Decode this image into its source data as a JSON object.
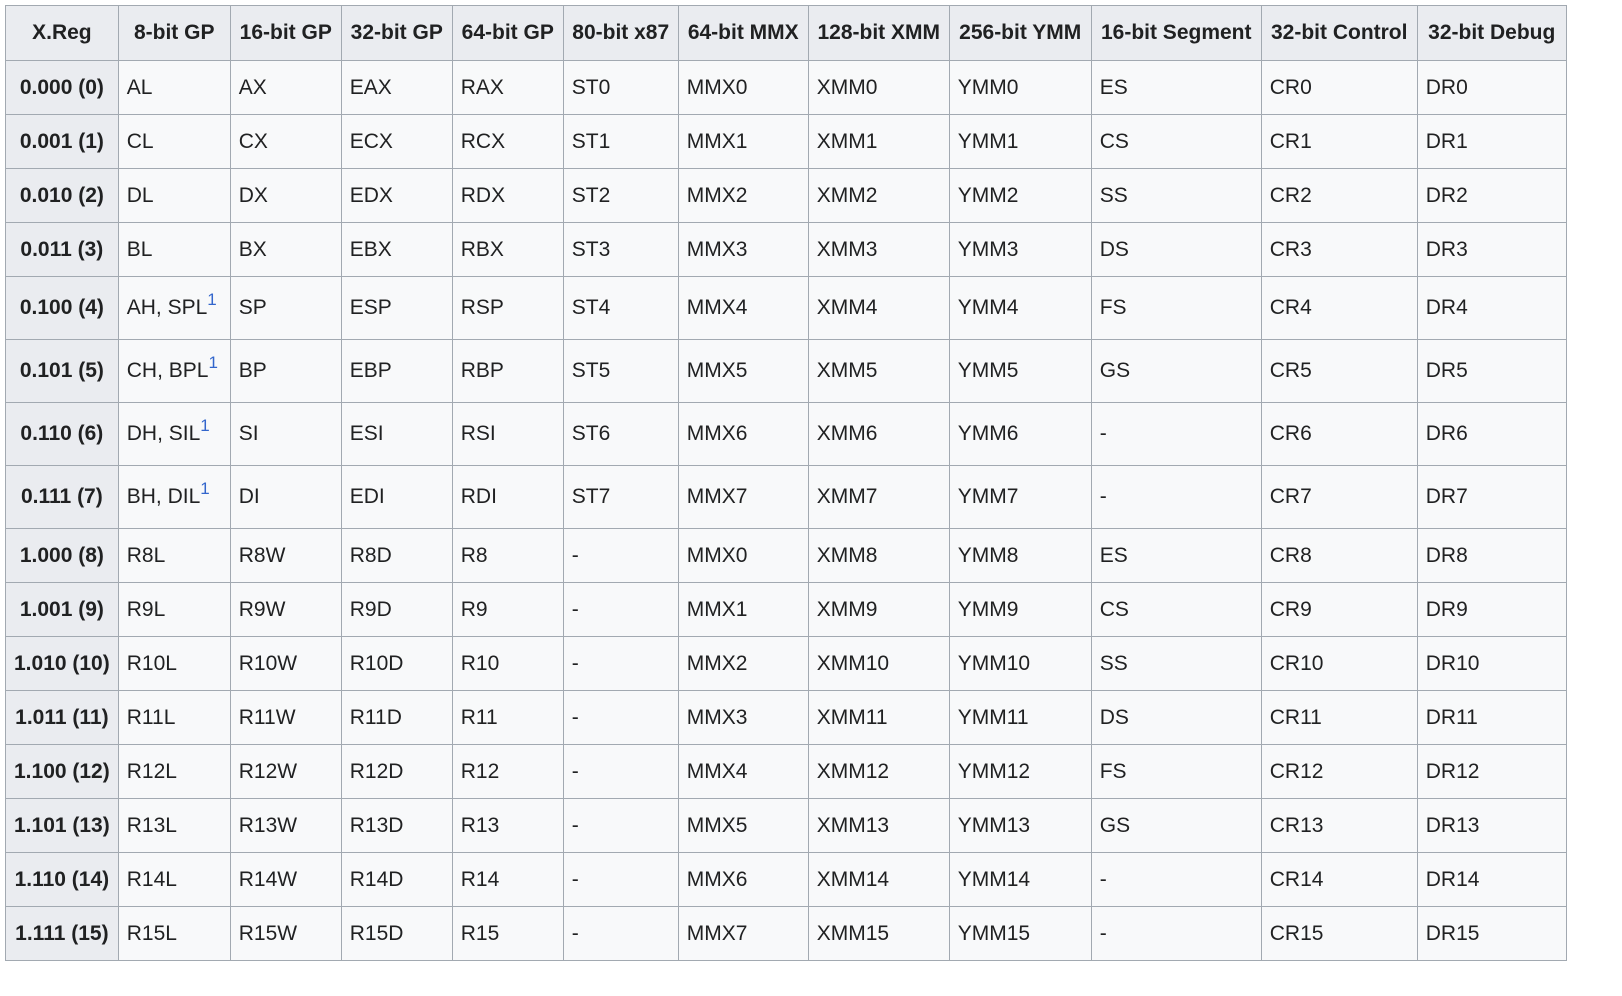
{
  "table": {
    "headers": [
      "X.Reg",
      "8-bit GP",
      "16-bit GP",
      "32-bit GP",
      "64-bit GP",
      "80-bit x87",
      "64-bit MMX",
      "128-bit XMM",
      "256-bit YMM",
      "16-bit Segment",
      "32-bit Control",
      "32-bit Debug"
    ],
    "rows": [
      {
        "xreg": "0.000 (0)",
        "gp8": "AL",
        "fn": "",
        "gp16": "AX",
        "gp32": "EAX",
        "gp64": "RAX",
        "x87": "ST0",
        "mmx": "MMX0",
        "xmm": "XMM0",
        "ymm": "YMM0",
        "seg": "ES",
        "ctrl": "CR0",
        "dbg": "DR0"
      },
      {
        "xreg": "0.001 (1)",
        "gp8": "CL",
        "fn": "",
        "gp16": "CX",
        "gp32": "ECX",
        "gp64": "RCX",
        "x87": "ST1",
        "mmx": "MMX1",
        "xmm": "XMM1",
        "ymm": "YMM1",
        "seg": "CS",
        "ctrl": "CR1",
        "dbg": "DR1"
      },
      {
        "xreg": "0.010 (2)",
        "gp8": "DL",
        "fn": "",
        "gp16": "DX",
        "gp32": "EDX",
        "gp64": "RDX",
        "x87": "ST2",
        "mmx": "MMX2",
        "xmm": "XMM2",
        "ymm": "YMM2",
        "seg": "SS",
        "ctrl": "CR2",
        "dbg": "DR2"
      },
      {
        "xreg": "0.011 (3)",
        "gp8": "BL",
        "fn": "",
        "gp16": "BX",
        "gp32": "EBX",
        "gp64": "RBX",
        "x87": "ST3",
        "mmx": "MMX3",
        "xmm": "XMM3",
        "ymm": "YMM3",
        "seg": "DS",
        "ctrl": "CR3",
        "dbg": "DR3"
      },
      {
        "xreg": "0.100 (4)",
        "gp8": "AH, SPL",
        "fn": "1",
        "gp16": "SP",
        "gp32": "ESP",
        "gp64": "RSP",
        "x87": "ST4",
        "mmx": "MMX4",
        "xmm": "XMM4",
        "ymm": "YMM4",
        "seg": "FS",
        "ctrl": "CR4",
        "dbg": "DR4"
      },
      {
        "xreg": "0.101 (5)",
        "gp8": "CH, BPL",
        "fn": "1",
        "gp16": "BP",
        "gp32": "EBP",
        "gp64": "RBP",
        "x87": "ST5",
        "mmx": "MMX5",
        "xmm": "XMM5",
        "ymm": "YMM5",
        "seg": "GS",
        "ctrl": "CR5",
        "dbg": "DR5"
      },
      {
        "xreg": "0.110 (6)",
        "gp8": "DH, SIL",
        "fn": "1",
        "gp16": "SI",
        "gp32": "ESI",
        "gp64": "RSI",
        "x87": "ST6",
        "mmx": "MMX6",
        "xmm": "XMM6",
        "ymm": "YMM6",
        "seg": "-",
        "ctrl": "CR6",
        "dbg": "DR6"
      },
      {
        "xreg": "0.111 (7)",
        "gp8": "BH, DIL",
        "fn": "1",
        "gp16": "DI",
        "gp32": "EDI",
        "gp64": "RDI",
        "x87": "ST7",
        "mmx": "MMX7",
        "xmm": "XMM7",
        "ymm": "YMM7",
        "seg": "-",
        "ctrl": "CR7",
        "dbg": "DR7"
      },
      {
        "xreg": "1.000 (8)",
        "gp8": "R8L",
        "fn": "",
        "gp16": "R8W",
        "gp32": "R8D",
        "gp64": "R8",
        "x87": "-",
        "mmx": "MMX0",
        "xmm": "XMM8",
        "ymm": "YMM8",
        "seg": "ES",
        "ctrl": "CR8",
        "dbg": "DR8"
      },
      {
        "xreg": "1.001 (9)",
        "gp8": "R9L",
        "fn": "",
        "gp16": "R9W",
        "gp32": "R9D",
        "gp64": "R9",
        "x87": "-",
        "mmx": "MMX1",
        "xmm": "XMM9",
        "ymm": "YMM9",
        "seg": "CS",
        "ctrl": "CR9",
        "dbg": "DR9"
      },
      {
        "xreg": "1.010 (10)",
        "gp8": "R10L",
        "fn": "",
        "gp16": "R10W",
        "gp32": "R10D",
        "gp64": "R10",
        "x87": "-",
        "mmx": "MMX2",
        "xmm": "XMM10",
        "ymm": "YMM10",
        "seg": "SS",
        "ctrl": "CR10",
        "dbg": "DR10"
      },
      {
        "xreg": "1.011 (11)",
        "gp8": "R11L",
        "fn": "",
        "gp16": "R11W",
        "gp32": "R11D",
        "gp64": "R11",
        "x87": "-",
        "mmx": "MMX3",
        "xmm": "XMM11",
        "ymm": "YMM11",
        "seg": "DS",
        "ctrl": "CR11",
        "dbg": "DR11"
      },
      {
        "xreg": "1.100 (12)",
        "gp8": "R12L",
        "fn": "",
        "gp16": "R12W",
        "gp32": "R12D",
        "gp64": "R12",
        "x87": "-",
        "mmx": "MMX4",
        "xmm": "XMM12",
        "ymm": "YMM12",
        "seg": "FS",
        "ctrl": "CR12",
        "dbg": "DR12"
      },
      {
        "xreg": "1.101 (13)",
        "gp8": "R13L",
        "fn": "",
        "gp16": "R13W",
        "gp32": "R13D",
        "gp64": "R13",
        "x87": "-",
        "mmx": "MMX5",
        "xmm": "XMM13",
        "ymm": "YMM13",
        "seg": "GS",
        "ctrl": "CR13",
        "dbg": "DR13"
      },
      {
        "xreg": "1.110 (14)",
        "gp8": "R14L",
        "fn": "",
        "gp16": "R14W",
        "gp32": "R14D",
        "gp64": "R14",
        "x87": "-",
        "mmx": "MMX6",
        "xmm": "XMM14",
        "ymm": "YMM14",
        "seg": "-",
        "ctrl": "CR14",
        "dbg": "DR14"
      },
      {
        "xreg": "1.111 (15)",
        "gp8": "R15L",
        "fn": "",
        "gp16": "R15W",
        "gp32": "R15D",
        "gp64": "R15",
        "x87": "-",
        "mmx": "MMX7",
        "xmm": "XMM15",
        "ymm": "YMM15",
        "seg": "-",
        "ctrl": "CR15",
        "dbg": "DR15"
      }
    ]
  }
}
